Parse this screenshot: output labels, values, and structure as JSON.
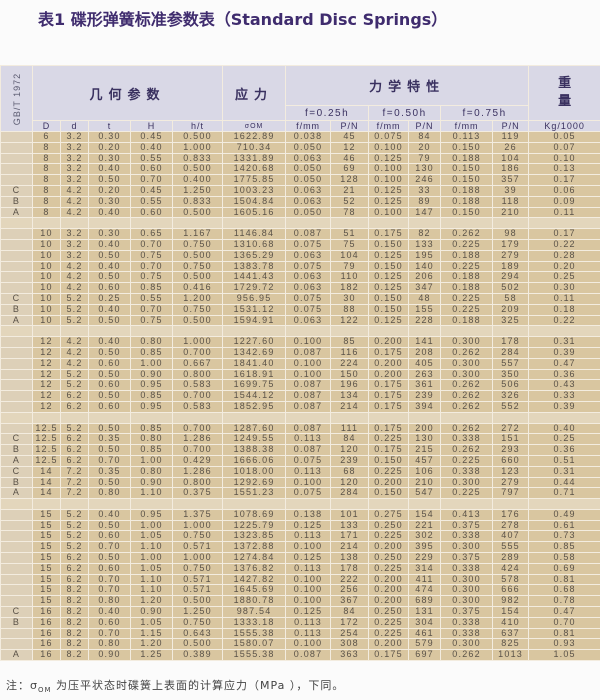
{
  "title": "表1  碟形弹簧标准参数表（Standard Disc Springs）",
  "header": {
    "standard": "GB/T 1972",
    "geometry": "几何参数",
    "stress": "应力",
    "mechanical": "力学特性",
    "weight_1": "重",
    "weight_2": "量",
    "deflections": [
      "f=0.25h",
      "f=0.50h",
      "f=0.75h"
    ],
    "columns": [
      "D",
      "d",
      "t",
      "H",
      "h/t",
      "σOM",
      "f/mm",
      "P/N",
      "f/mm",
      "P/N",
      "f/mm",
      "P/N",
      "Kg/1000"
    ]
  },
  "groups": [
    [
      [
        "",
        "6",
        "3.2",
        "0.30",
        "0.45",
        "0.500",
        "1622.89",
        "0.038",
        "45",
        "0.075",
        "84",
        "0.113",
        "119",
        "0.05"
      ],
      [
        "",
        "8",
        "3.2",
        "0.20",
        "0.40",
        "1.000",
        "710.34",
        "0.050",
        "12",
        "0.100",
        "20",
        "0.150",
        "26",
        "0.07"
      ],
      [
        "",
        "8",
        "3.2",
        "0.30",
        "0.55",
        "0.833",
        "1331.89",
        "0.063",
        "46",
        "0.125",
        "79",
        "0.188",
        "104",
        "0.10"
      ],
      [
        "",
        "8",
        "3.2",
        "0.40",
        "0.60",
        "0.500",
        "1420.68",
        "0.050",
        "69",
        "0.100",
        "130",
        "0.150",
        "186",
        "0.13"
      ],
      [
        "",
        "8",
        "3.2",
        "0.50",
        "0.70",
        "0.400",
        "1775.85",
        "0.050",
        "128",
        "0.100",
        "246",
        "0.150",
        "357",
        "0.17"
      ],
      [
        "C",
        "8",
        "4.2",
        "0.20",
        "0.45",
        "1.250",
        "1003.23",
        "0.063",
        "21",
        "0.125",
        "33",
        "0.188",
        "39",
        "0.06"
      ],
      [
        "B",
        "8",
        "4.2",
        "0.30",
        "0.55",
        "0.833",
        "1504.84",
        "0.063",
        "52",
        "0.125",
        "89",
        "0.188",
        "118",
        "0.09"
      ],
      [
        "A",
        "8",
        "4.2",
        "0.40",
        "0.60",
        "0.500",
        "1605.16",
        "0.050",
        "78",
        "0.100",
        "147",
        "0.150",
        "210",
        "0.11"
      ]
    ],
    [
      [
        "",
        "10",
        "3.2",
        "0.30",
        "0.65",
        "1.167",
        "1146.84",
        "0.087",
        "51",
        "0.175",
        "82",
        "0.262",
        "98",
        "0.17"
      ],
      [
        "",
        "10",
        "3.2",
        "0.40",
        "0.70",
        "0.750",
        "1310.68",
        "0.075",
        "75",
        "0.150",
        "133",
        "0.225",
        "179",
        "0.22"
      ],
      [
        "",
        "10",
        "3.2",
        "0.50",
        "0.75",
        "0.500",
        "1365.29",
        "0.063",
        "104",
        "0.125",
        "195",
        "0.188",
        "279",
        "0.28"
      ],
      [
        "",
        "10",
        "4.2",
        "0.40",
        "0.70",
        "0.750",
        "1383.78",
        "0.075",
        "79",
        "0.150",
        "140",
        "0.225",
        "189",
        "0.20"
      ],
      [
        "",
        "10",
        "4.2",
        "0.50",
        "0.75",
        "0.500",
        "1441.43",
        "0.063",
        "110",
        "0.125",
        "206",
        "0.188",
        "294",
        "0.25"
      ],
      [
        "",
        "10",
        "4.2",
        "0.60",
        "0.85",
        "0.416",
        "1729.72",
        "0.063",
        "182",
        "0.125",
        "347",
        "0.188",
        "502",
        "0.30"
      ],
      [
        "C",
        "10",
        "5.2",
        "0.25",
        "0.55",
        "1.200",
        "956.95",
        "0.075",
        "30",
        "0.150",
        "48",
        "0.225",
        "58",
        "0.11"
      ],
      [
        "B",
        "10",
        "5.2",
        "0.40",
        "0.70",
        "0.750",
        "1531.12",
        "0.075",
        "88",
        "0.150",
        "155",
        "0.225",
        "209",
        "0.18"
      ],
      [
        "A",
        "10",
        "5.2",
        "0.50",
        "0.75",
        "0.500",
        "1594.91",
        "0.063",
        "122",
        "0.125",
        "228",
        "0.188",
        "325",
        "0.22"
      ]
    ],
    [
      [
        "",
        "12",
        "4.2",
        "0.40",
        "0.80",
        "1.000",
        "1227.60",
        "0.100",
        "85",
        "0.200",
        "141",
        "0.300",
        "178",
        "0.31"
      ],
      [
        "",
        "12",
        "4.2",
        "0.50",
        "0.85",
        "0.700",
        "1342.69",
        "0.087",
        "116",
        "0.175",
        "208",
        "0.262",
        "284",
        "0.39"
      ],
      [
        "",
        "12",
        "4.2",
        "0.60",
        "1.00",
        "0.667",
        "1841.40",
        "0.100",
        "224",
        "0.200",
        "405",
        "0.300",
        "557",
        "0.47"
      ],
      [
        "",
        "12",
        "5.2",
        "0.50",
        "0.90",
        "0.800",
        "1618.91",
        "0.100",
        "150",
        "0.200",
        "263",
        "0.300",
        "350",
        "0.36"
      ],
      [
        "",
        "12",
        "5.2",
        "0.60",
        "0.95",
        "0.583",
        "1699.75",
        "0.087",
        "196",
        "0.175",
        "361",
        "0.262",
        "506",
        "0.43"
      ],
      [
        "",
        "12",
        "6.2",
        "0.50",
        "0.85",
        "0.700",
        "1544.12",
        "0.087",
        "134",
        "0.175",
        "239",
        "0.262",
        "326",
        "0.33"
      ],
      [
        "",
        "12",
        "6.2",
        "0.60",
        "0.95",
        "0.583",
        "1852.95",
        "0.087",
        "214",
        "0.175",
        "394",
        "0.262",
        "552",
        "0.39"
      ]
    ],
    [
      [
        "",
        "12.5",
        "5.2",
        "0.50",
        "0.85",
        "0.700",
        "1287.60",
        "0.087",
        "111",
        "0.175",
        "200",
        "0.262",
        "272",
        "0.40"
      ],
      [
        "C",
        "12.5",
        "6.2",
        "0.35",
        "0.80",
        "1.286",
        "1249.55",
        "0.113",
        "84",
        "0.225",
        "130",
        "0.338",
        "151",
        "0.25"
      ],
      [
        "B",
        "12.5",
        "6.2",
        "0.50",
        "0.85",
        "0.700",
        "1388.38",
        "0.087",
        "120",
        "0.175",
        "215",
        "0.262",
        "293",
        "0.36"
      ],
      [
        "A",
        "12.5",
        "6.2",
        "0.70",
        "1.00",
        "0.429",
        "1666.06",
        "0.075",
        "239",
        "0.150",
        "457",
        "0.225",
        "660",
        "0.51"
      ],
      [
        "C",
        "14",
        "7.2",
        "0.35",
        "0.80",
        "1.286",
        "1018.00",
        "0.113",
        "68",
        "0.225",
        "106",
        "0.338",
        "123",
        "0.31"
      ],
      [
        "B",
        "14",
        "7.2",
        "0.50",
        "0.90",
        "0.800",
        "1292.69",
        "0.100",
        "120",
        "0.200",
        "210",
        "0.300",
        "279",
        "0.44"
      ],
      [
        "A",
        "14",
        "7.2",
        "0.80",
        "1.10",
        "0.375",
        "1551.23",
        "0.075",
        "284",
        "0.150",
        "547",
        "0.225",
        "797",
        "0.71"
      ]
    ],
    [
      [
        "",
        "15",
        "5.2",
        "0.40",
        "0.95",
        "1.375",
        "1078.69",
        "0.138",
        "101",
        "0.275",
        "154",
        "0.413",
        "176",
        "0.49"
      ],
      [
        "",
        "15",
        "5.2",
        "0.50",
        "1.00",
        "1.000",
        "1225.79",
        "0.125",
        "133",
        "0.250",
        "221",
        "0.375",
        "278",
        "0.61"
      ],
      [
        "",
        "15",
        "5.2",
        "0.60",
        "1.05",
        "0.750",
        "1323.85",
        "0.113",
        "171",
        "0.225",
        "302",
        "0.338",
        "407",
        "0.73"
      ],
      [
        "",
        "15",
        "5.2",
        "0.70",
        "1.10",
        "0.571",
        "1372.88",
        "0.100",
        "214",
        "0.200",
        "395",
        "0.300",
        "555",
        "0.85"
      ],
      [
        "",
        "15",
        "6.2",
        "0.50",
        "1.00",
        "1.000",
        "1274.84",
        "0.125",
        "138",
        "0.250",
        "229",
        "0.375",
        "289",
        "0.58"
      ],
      [
        "",
        "15",
        "6.2",
        "0.60",
        "1.05",
        "0.750",
        "1376.82",
        "0.113",
        "178",
        "0.225",
        "314",
        "0.338",
        "424",
        "0.69"
      ],
      [
        "",
        "15",
        "6.2",
        "0.70",
        "1.10",
        "0.571",
        "1427.82",
        "0.100",
        "222",
        "0.200",
        "411",
        "0.300",
        "578",
        "0.81"
      ],
      [
        "",
        "15",
        "8.2",
        "0.70",
        "1.10",
        "0.571",
        "1645.69",
        "0.100",
        "256",
        "0.200",
        "474",
        "0.300",
        "666",
        "0.68"
      ],
      [
        "",
        "15",
        "8.2",
        "0.80",
        "1.20",
        "0.500",
        "1880.78",
        "0.100",
        "367",
        "0.200",
        "689",
        "0.300",
        "982",
        "0.78"
      ],
      [
        "C",
        "16",
        "8.2",
        "0.40",
        "0.90",
        "1.250",
        "987.54",
        "0.125",
        "84",
        "0.250",
        "131",
        "0.375",
        "154",
        "0.47"
      ],
      [
        "B",
        "16",
        "8.2",
        "0.60",
        "1.05",
        "0.750",
        "1333.18",
        "0.113",
        "172",
        "0.225",
        "304",
        "0.338",
        "410",
        "0.70"
      ],
      [
        "",
        "16",
        "8.2",
        "0.70",
        "1.15",
        "0.643",
        "1555.38",
        "0.113",
        "254",
        "0.225",
        "461",
        "0.338",
        "637",
        "0.81"
      ],
      [
        "",
        "16",
        "8.2",
        "0.80",
        "1.20",
        "0.500",
        "1580.07",
        "0.100",
        "308",
        "0.200",
        "579",
        "0.300",
        "825",
        "0.93"
      ],
      [
        "A",
        "16",
        "8.2",
        "0.90",
        "1.25",
        "0.389",
        "1555.38",
        "0.087",
        "363",
        "0.175",
        "697",
        "0.262",
        "1013",
        "1.05"
      ]
    ]
  ],
  "note": {
    "prefix": "注：",
    "symbol": "σ",
    "symbol_sub": "OM",
    "text": " 为压平状态时碟簧上表面的计算应力（MPa ），下同。"
  },
  "colors": {
    "title": "#3f2c6e",
    "header_bg": "#d9d8e6",
    "data_bg": "#d9c6a0"
  }
}
